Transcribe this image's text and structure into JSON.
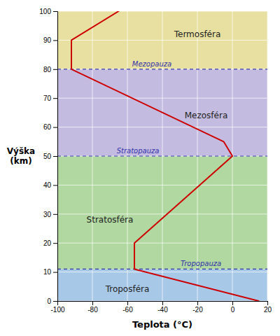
{
  "chart_data": {
    "type": "line",
    "xlabel": "Teplota (°C)",
    "ylabel": "Výška\n(km)",
    "x": [
      15,
      -56,
      -56,
      0,
      -5,
      -92,
      -92,
      -65
    ],
    "values": [
      0,
      11,
      20,
      50,
      55,
      80,
      90,
      100
    ],
    "color": "#cc0000",
    "xlim": [
      -100,
      20
    ],
    "ylim": [
      0,
      100
    ],
    "xticks": [
      -100,
      -80,
      -60,
      -40,
      -20,
      0,
      20
    ],
    "yticks": [
      0,
      10,
      20,
      30,
      40,
      50,
      60,
      70,
      80,
      90,
      100
    ],
    "grid": true,
    "zones": [
      {
        "name": "Troposféra",
        "from": 0,
        "to": 11,
        "color": "#a8c8e8",
        "x": -60,
        "y": 4
      },
      {
        "name": "Stratosféra",
        "from": 11,
        "to": 50,
        "color": "#b0d8a0",
        "x": -70,
        "y": 28
      },
      {
        "name": "Mezosféra",
        "from": 50,
        "to": 80,
        "color": "#c4bce0",
        "x": -15,
        "y": 64
      },
      {
        "name": "Termosféra",
        "from": 80,
        "to": 100,
        "color": "#e8e0a0",
        "x": -20,
        "y": 92
      }
    ],
    "pauses": [
      {
        "name": "Tropopauza",
        "value": 11,
        "x": -18,
        "color": "#3333aa"
      },
      {
        "name": "Stratopauza",
        "value": 50,
        "x": -54,
        "color": "#3333aa"
      },
      {
        "name": "Mezopauza",
        "value": 80,
        "x": -46,
        "color": "#3333aa"
      }
    ]
  }
}
